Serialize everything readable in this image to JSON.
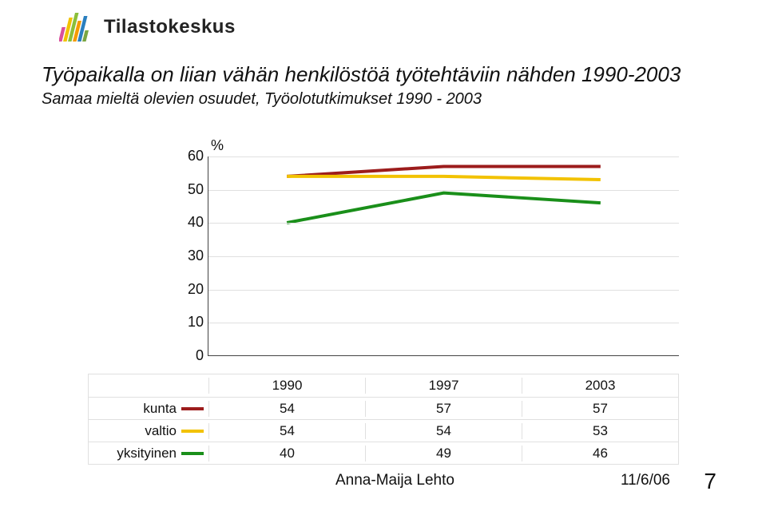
{
  "brand": {
    "name": "Tilastokeskus"
  },
  "title": "Työpaikalla on liian vähän henkilöstöä työtehtäviin nähden 1990-2003",
  "subtitle": "Samaa mieltä olevien osuudet, Työolotutkimukset 1990 - 2003",
  "chart": {
    "type": "line",
    "pct_symbol": "%",
    "ylim": [
      0,
      60
    ],
    "yticks": [
      0,
      10,
      20,
      30,
      40,
      50,
      60
    ],
    "categories": [
      "1990",
      "1997",
      "2003"
    ],
    "series": [
      {
        "name": "kunta",
        "color": "#9c1c1c",
        "values": [
          54,
          57,
          57
        ]
      },
      {
        "name": "valtio",
        "color": "#f2c200",
        "values": [
          54,
          54,
          53
        ]
      },
      {
        "name": "yksityinen",
        "color": "#1a8f1a",
        "values": [
          40,
          49,
          46
        ]
      }
    ],
    "grid_color": "#e0e0e0",
    "axis_color": "#444444",
    "line_width": 4,
    "background_color": "#ffffff",
    "label_fontsize": 18
  },
  "footer": {
    "author": "Anna-Maija Lehto",
    "date": "11/6/06",
    "page": "7"
  }
}
